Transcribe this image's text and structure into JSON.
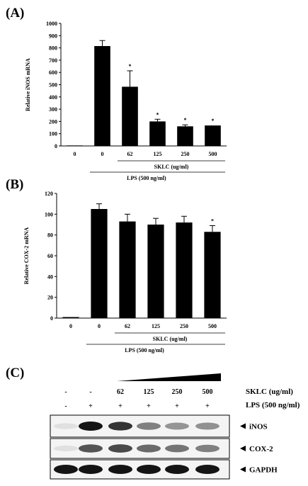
{
  "panels": [
    {
      "label": "(A)"
    },
    {
      "label": "(B)"
    },
    {
      "label": "(C)"
    }
  ],
  "chart_data": [
    {
      "type": "bar",
      "title": "",
      "ylabel": "Relative iNOS mRNA",
      "ylim": [
        0,
        1000
      ],
      "yticks": [
        0,
        100,
        200,
        300,
        400,
        500,
        600,
        700,
        800,
        900,
        1000
      ],
      "categories": [
        "0",
        "0",
        "62",
        "125",
        "250",
        "500"
      ],
      "values": [
        4,
        815,
        483,
        200,
        160,
        167
      ],
      "errors": [
        0,
        45,
        130,
        18,
        12,
        0
      ],
      "significant": [
        false,
        false,
        true,
        true,
        true,
        true
      ],
      "sig_marker": "*",
      "group_labels": {
        "sklc": "SKLC (ug/ml)",
        "lps": "LPS (500 ng/ml)"
      },
      "grid": false
    },
    {
      "type": "bar",
      "title": "",
      "ylabel": "Relative COX-2  mRNA",
      "ylim": [
        0,
        120
      ],
      "yticks": [
        0,
        20,
        40,
        60,
        80,
        100,
        120
      ],
      "categories": [
        "0",
        "0",
        "62",
        "125",
        "250",
        "500"
      ],
      "values": [
        1,
        105,
        93,
        90,
        92,
        83
      ],
      "errors": [
        0,
        5,
        7,
        6,
        6,
        6
      ],
      "significant": [
        false,
        false,
        false,
        false,
        false,
        true
      ],
      "sig_marker": "*",
      "group_labels": {
        "sklc": "SKLC (ug/ml)",
        "lps": "LPS (500 ng/ml)"
      },
      "grid": false
    }
  ],
  "blot": {
    "sklc_label": "SKLC (ug/ml)",
    "lps_label": "LPS (500 ng/ml)",
    "sklc_row": [
      "-",
      "-",
      "62",
      "125",
      "250",
      "500"
    ],
    "lps_row": [
      "-",
      "+",
      "+",
      "+",
      "+",
      "+"
    ],
    "bands": [
      {
        "name": "iNOS",
        "intensity": [
          0.05,
          1.0,
          0.85,
          0.5,
          0.4,
          0.42
        ]
      },
      {
        "name": "COX-2",
        "intensity": [
          0.05,
          0.7,
          0.75,
          0.6,
          0.55,
          0.5
        ]
      },
      {
        "name": "GAPDH",
        "intensity": [
          1.0,
          1.0,
          1.0,
          1.0,
          1.0,
          1.0
        ]
      }
    ]
  }
}
